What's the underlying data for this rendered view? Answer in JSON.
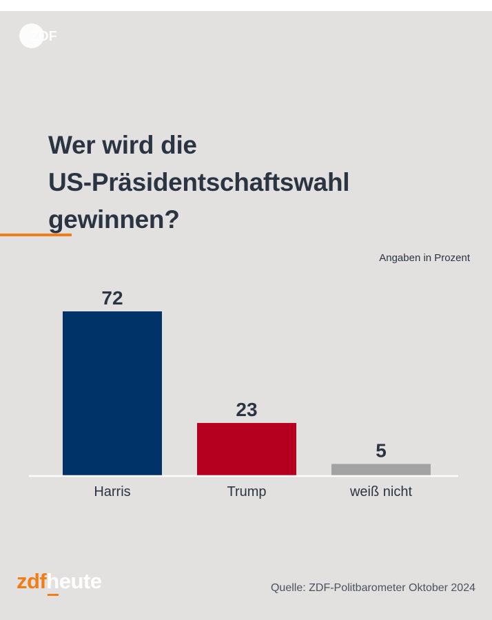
{
  "brand": {
    "top_logo_text": "ZDF",
    "footer_logo_left": "zdf",
    "footer_logo_right": "heute"
  },
  "colors": {
    "background": "#e3e1df",
    "title": "#2a3443",
    "accent": "#f07d1a"
  },
  "title_lines": [
    "Wer wird die",
    "US-Präsidentschaftswahl",
    "gewinnen?"
  ],
  "unit_note": "Angaben in Prozent",
  "source": "Quelle: ZDF-Politbarometer Oktober 2024",
  "chart_data": {
    "type": "bar",
    "title": "Wer wird die US-Präsidentschaftswahl gewinnen?",
    "ylabel": "Angaben in Prozent",
    "xlabel": "",
    "categories": [
      "Harris",
      "Trump",
      "weiß nicht"
    ],
    "values": [
      72,
      23,
      5
    ],
    "colors": [
      "#003468",
      "#b5001f",
      "#a3a3a3"
    ],
    "ylim": [
      0,
      72
    ],
    "grid": false,
    "legend": "none"
  }
}
